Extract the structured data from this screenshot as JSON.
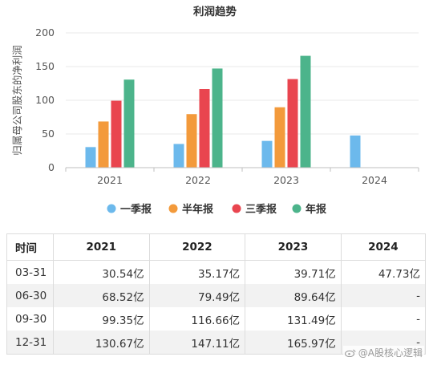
{
  "chart_data": {
    "type": "bar",
    "title": "利润趋势",
    "ylabel": "归属母公司股东的净利润",
    "xlabel": "",
    "ylim": [
      0,
      200
    ],
    "yticks": [
      0,
      50,
      100,
      150,
      200
    ],
    "grid": true,
    "legend_position": "bottom",
    "categories": [
      "2021",
      "2022",
      "2023",
      "2024"
    ],
    "series": [
      {
        "name": "一季报",
        "color": "#6cb9ec",
        "values": [
          30.54,
          35.17,
          39.71,
          47.73
        ]
      },
      {
        "name": "半年报",
        "color": "#f39a3b",
        "values": [
          68.52,
          79.49,
          89.64,
          null
        ]
      },
      {
        "name": "三季报",
        "color": "#e9454f",
        "values": [
          99.35,
          116.66,
          131.49,
          null
        ]
      },
      {
        "name": "年报",
        "color": "#4cb48b",
        "values": [
          130.67,
          147.11,
          165.97,
          null
        ]
      }
    ]
  },
  "table": {
    "header_period": "时间",
    "years": [
      "2021",
      "2022",
      "2023",
      "2024"
    ],
    "rows": [
      {
        "period": "03-31",
        "values": [
          "30.54亿",
          "35.17亿",
          "39.71亿",
          "47.73亿"
        ]
      },
      {
        "period": "06-30",
        "values": [
          "68.52亿",
          "79.49亿",
          "89.64亿",
          "-"
        ]
      },
      {
        "period": "09-30",
        "values": [
          "99.35亿",
          "116.66亿",
          "131.49亿",
          "-"
        ]
      },
      {
        "period": "12-31",
        "values": [
          "130.67亿",
          "147.11亿",
          "165.97亿",
          "-"
        ]
      }
    ]
  },
  "watermark": "@A股核心逻辑"
}
